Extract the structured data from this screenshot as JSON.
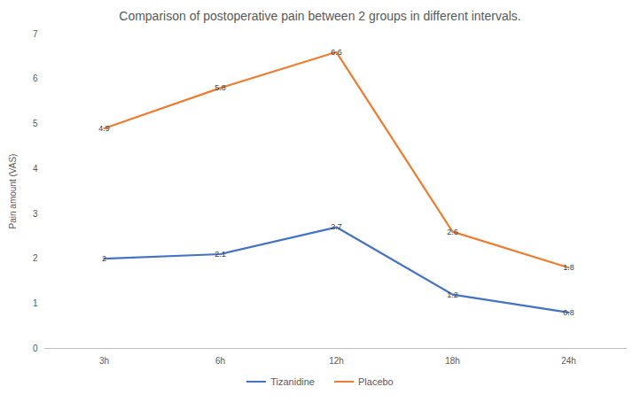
{
  "chart_data": {
    "type": "line",
    "title": "Comparison of postoperative pain between 2 groups in different intervals.",
    "y_label": "Pain amount (VAS)",
    "categories": [
      "3h",
      "6h",
      "12h",
      "18h",
      "24h"
    ],
    "series": [
      {
        "name": "Tizanidine",
        "color": "#4472c4",
        "values": [
          2,
          2.1,
          2.7,
          1.2,
          0.8
        ]
      },
      {
        "name": "Placebo",
        "color": "#ed7d31",
        "values": [
          4.9,
          5.8,
          6.6,
          2.6,
          1.8
        ]
      }
    ],
    "ylim": [
      0,
      7
    ],
    "yticks": [
      0,
      1,
      2,
      3,
      4,
      5,
      6,
      7
    ],
    "grid": false,
    "data_labels": true,
    "legend": "bottom"
  }
}
